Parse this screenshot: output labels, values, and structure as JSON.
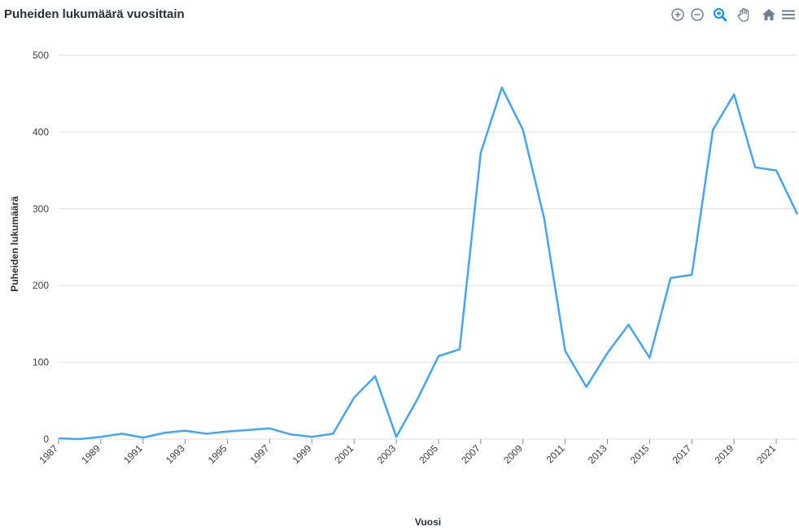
{
  "chart_data": {
    "type": "line",
    "title": "Puheiden lukumäärä vuosittain",
    "xlabel": "Vuosi",
    "ylabel": "Puheiden lukumäärä",
    "x": [
      1987,
      1988,
      1989,
      1990,
      1991,
      1992,
      1993,
      1994,
      1995,
      1996,
      1997,
      1998,
      1999,
      2000,
      2001,
      2002,
      2003,
      2004,
      2005,
      2006,
      2007,
      2008,
      2009,
      2010,
      2011,
      2012,
      2013,
      2014,
      2015,
      2016,
      2017,
      2018,
      2019,
      2020,
      2021,
      2022
    ],
    "series": [
      {
        "values": [
          1,
          0,
          3,
          7,
          2,
          8,
          11,
          7,
          10,
          12,
          14,
          6,
          3,
          7,
          54,
          82,
          3,
          52,
          108,
          117,
          373,
          458,
          403,
          288,
          115,
          68,
          112,
          149,
          106,
          210,
          214,
          403,
          449,
          354,
          350,
          293
        ],
        "color": "#42a5f5"
      }
    ],
    "x_tick_labels": [
      "1987",
      "1989",
      "1991",
      "1993",
      "1995",
      "1997",
      "1999",
      "2001",
      "2003",
      "2005",
      "2007",
      "2009",
      "2011",
      "2013",
      "2015",
      "2017",
      "2019",
      "2021"
    ],
    "y_ticks": [
      0,
      100,
      200,
      300,
      400,
      500
    ],
    "ylim": [
      0,
      500
    ],
    "xlim": [
      1987,
      2022
    ],
    "grid": true,
    "legend": "none"
  },
  "toolbar": {
    "icons": [
      "zoom-in-icon",
      "zoom-out-icon",
      "zoom-selection-icon",
      "pan-icon",
      "home-icon",
      "menu-icon"
    ],
    "active_color": "#008ffb",
    "inactive_color": "#6e8192"
  }
}
